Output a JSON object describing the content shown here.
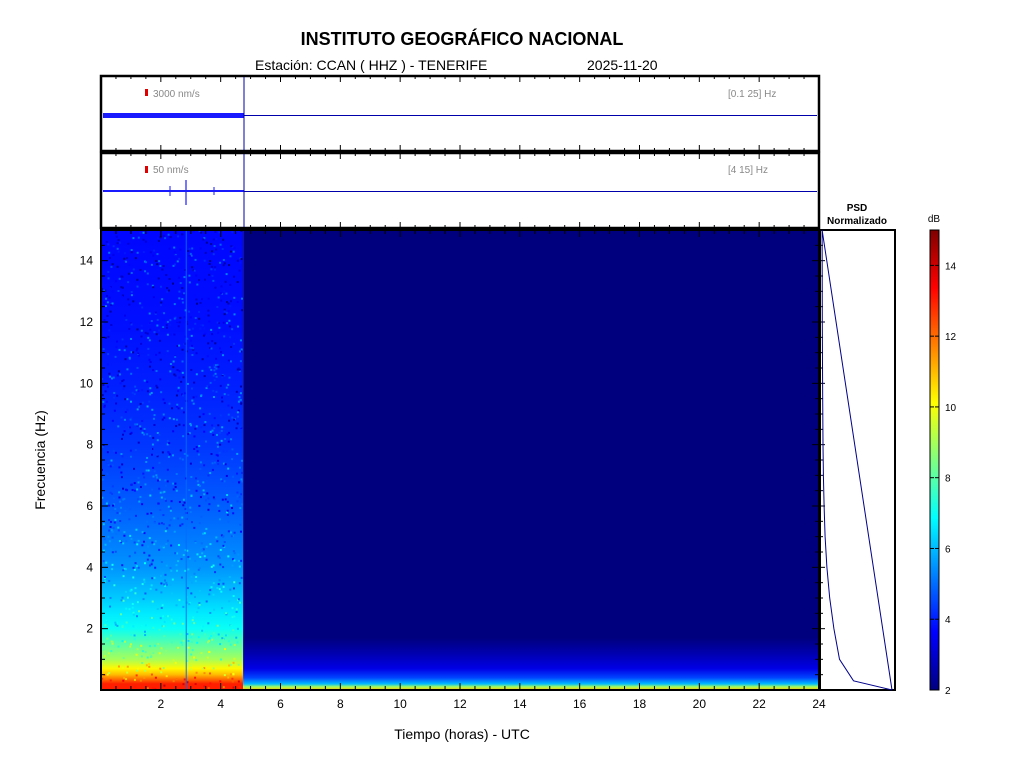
{
  "header": {
    "title": "INSTITUTO GEOGRÁFICO NACIONAL",
    "station_label": "Estación:  CCAN ( HHZ ) - TENERIFE",
    "date": "2025-11-20"
  },
  "traces": [
    {
      "scale_label": "3000 nm/s",
      "band_label": "[0.1 25] Hz",
      "data_end_hour": 4.75
    },
    {
      "scale_label": "50 nm/s",
      "band_label": "[4 15] Hz",
      "data_end_hour": 4.75
    }
  ],
  "psd": {
    "title_line1": "PSD",
    "title_line2": "Normalizado"
  },
  "colorbar": {
    "unit": "dB",
    "min": 2,
    "max": 15,
    "ticks": [
      "2",
      "4",
      "6",
      "8",
      "10",
      "12",
      "14"
    ],
    "colors": [
      "#00007f",
      "#0000ff",
      "#0080ff",
      "#00ffff",
      "#80ff80",
      "#ffff00",
      "#ff8000",
      "#ff0000",
      "#7f0000"
    ]
  },
  "chart_data": {
    "type": "heatmap",
    "title": "INSTITUTO GEOGRÁFICO NACIONAL",
    "xlabel": "Tiempo (horas) - UTC",
    "ylabel": "Frecuencia  (Hz)",
    "xlim": [
      0,
      24
    ],
    "ylim": [
      0,
      15
    ],
    "x_ticks": [
      "2",
      "4",
      "6",
      "8",
      "10",
      "12",
      "14",
      "16",
      "18",
      "20",
      "22",
      "24"
    ],
    "y_ticks": [
      "2",
      "4",
      "6",
      "8",
      "10",
      "12",
      "14"
    ],
    "data_end_hour": 4.75,
    "noise_profile_db": [
      {
        "freq": 0.2,
        "db": 13
      },
      {
        "freq": 0.5,
        "db": 11
      },
      {
        "freq": 1,
        "db": 9
      },
      {
        "freq": 2,
        "db": 7
      },
      {
        "freq": 3,
        "db": 6.2
      },
      {
        "freq": 4,
        "db": 5.5
      },
      {
        "freq": 6,
        "db": 4.8
      },
      {
        "freq": 8,
        "db": 4.3
      },
      {
        "freq": 10,
        "db": 4
      },
      {
        "freq": 12,
        "db": 3.8
      },
      {
        "freq": 15,
        "db": 3.7
      }
    ],
    "psd_normalized": [
      {
        "freq": 0,
        "value": 1.0
      },
      {
        "freq": 0.3,
        "value": 0.45
      },
      {
        "freq": 1,
        "value": 0.25
      },
      {
        "freq": 2,
        "value": 0.17
      },
      {
        "freq": 3,
        "value": 0.11
      },
      {
        "freq": 4,
        "value": 0.07
      },
      {
        "freq": 5,
        "value": 0.045
      },
      {
        "freq": 6,
        "value": 0.03
      },
      {
        "freq": 7,
        "value": 0.02
      },
      {
        "freq": 8,
        "value": 0.015
      },
      {
        "freq": 10,
        "value": 0.008
      },
      {
        "freq": 12,
        "value": 0.004
      },
      {
        "freq": 15,
        "value": 0.002
      }
    ]
  }
}
